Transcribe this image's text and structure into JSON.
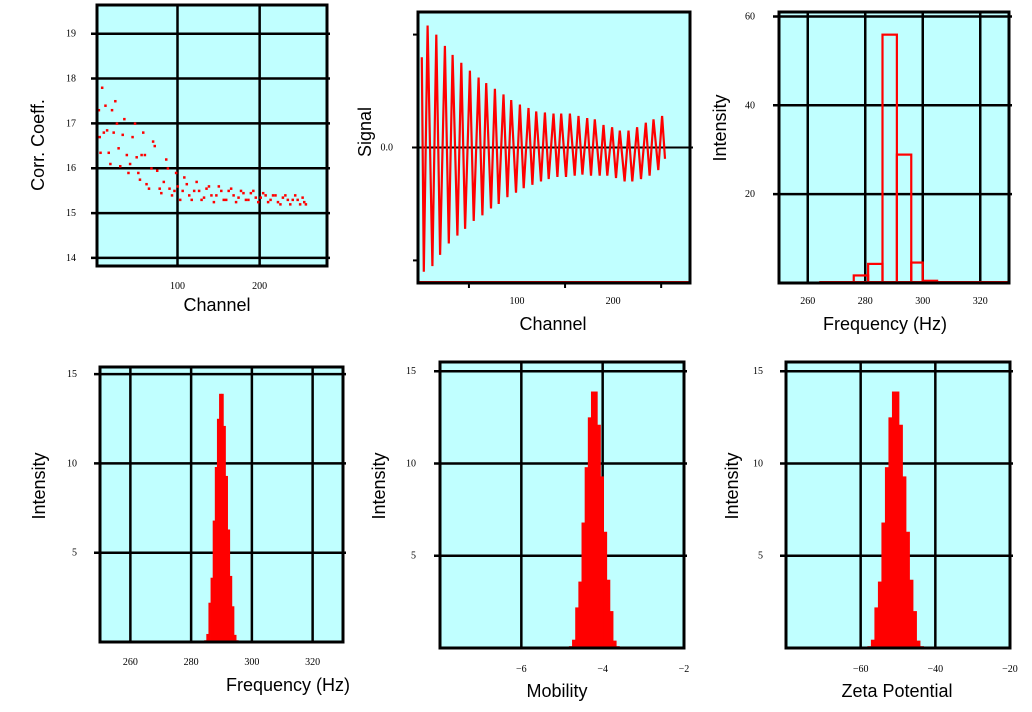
{
  "colors": {
    "plot_background": "#c0ffff",
    "data": "#ff0000",
    "grid": "#000000"
  },
  "chart_data": [
    {
      "type": "scatter",
      "xlabel": "Channel",
      "ylabel": "Corr. Coeff.",
      "xlim": [
        2,
        282
      ],
      "ylim": [
        13.82,
        19.64
      ],
      "xticks": [
        100,
        200
      ],
      "xtick_labels": [
        "100",
        "200"
      ],
      "yticks": [
        14,
        15,
        16,
        17,
        18,
        19
      ],
      "ytick_labels": [
        "14",
        "15",
        "16",
        "17",
        "18",
        "19"
      ],
      "grid": true,
      "points": [
        [
          2,
          16.3
        ],
        [
          4,
          17.3
        ],
        [
          5,
          16.7
        ],
        [
          6,
          16.35
        ],
        [
          8,
          17.8
        ],
        [
          10,
          16.8
        ],
        [
          12,
          17.4
        ],
        [
          14,
          16.85
        ],
        [
          16,
          16.35
        ],
        [
          18,
          16.1
        ],
        [
          20,
          17.3
        ],
        [
          22,
          16.8
        ],
        [
          24,
          17.5
        ],
        [
          26,
          17.0
        ],
        [
          28,
          16.45
        ],
        [
          30,
          16.05
        ],
        [
          33,
          16.75
        ],
        [
          35,
          17.1
        ],
        [
          38,
          16.3
        ],
        [
          40,
          15.9
        ],
        [
          42,
          16.1
        ],
        [
          45,
          16.7
        ],
        [
          48,
          17.0
        ],
        [
          50,
          16.25
        ],
        [
          52,
          15.9
        ],
        [
          54,
          15.75
        ],
        [
          56,
          16.3
        ],
        [
          58,
          16.8
        ],
        [
          60,
          16.3
        ],
        [
          62,
          15.65
        ],
        [
          65,
          15.55
        ],
        [
          68,
          16.0
        ],
        [
          70,
          16.6
        ],
        [
          72,
          16.5
        ],
        [
          75,
          15.95
        ],
        [
          78,
          15.55
        ],
        [
          80,
          15.45
        ],
        [
          83,
          15.7
        ],
        [
          86,
          16.2
        ],
        [
          88,
          16.0
        ],
        [
          90,
          15.55
        ],
        [
          93,
          15.4
        ],
        [
          96,
          15.5
        ],
        [
          98,
          15.9
        ],
        [
          100,
          15.6
        ],
        [
          103,
          15.3
        ],
        [
          106,
          15.5
        ],
        [
          108,
          15.8
        ],
        [
          111,
          15.65
        ],
        [
          114,
          15.4
        ],
        [
          117,
          15.3
        ],
        [
          120,
          15.5
        ],
        [
          123,
          15.7
        ],
        [
          126,
          15.5
        ],
        [
          129,
          15.3
        ],
        [
          132,
          15.35
        ],
        [
          135,
          15.55
        ],
        [
          138,
          15.6
        ],
        [
          141,
          15.4
        ],
        [
          144,
          15.25
        ],
        [
          147,
          15.4
        ],
        [
          150,
          15.6
        ],
        [
          153,
          15.5
        ],
        [
          156,
          15.3
        ],
        [
          159,
          15.3
        ],
        [
          162,
          15.5
        ],
        [
          165,
          15.55
        ],
        [
          168,
          15.4
        ],
        [
          171,
          15.25
        ],
        [
          174,
          15.35
        ],
        [
          177,
          15.5
        ],
        [
          180,
          15.45
        ],
        [
          183,
          15.3
        ],
        [
          186,
          15.3
        ],
        [
          189,
          15.45
        ],
        [
          192,
          15.5
        ],
        [
          195,
          15.35
        ],
        [
          198,
          15.25
        ],
        [
          201,
          15.35
        ],
        [
          204,
          15.45
        ],
        [
          207,
          15.4
        ],
        [
          210,
          15.25
        ],
        [
          213,
          15.3
        ],
        [
          216,
          15.4
        ],
        [
          219,
          15.4
        ],
        [
          222,
          15.25
        ],
        [
          225,
          15.2
        ],
        [
          228,
          15.35
        ],
        [
          231,
          15.4
        ],
        [
          234,
          15.3
        ],
        [
          237,
          15.2
        ],
        [
          240,
          15.3
        ],
        [
          243,
          15.4
        ],
        [
          246,
          15.3
        ],
        [
          249,
          15.2
        ],
        [
          252,
          15.35
        ],
        [
          254,
          15.25
        ],
        [
          256,
          15.2
        ]
      ]
    },
    {
      "type": "line",
      "xlabel": "Channel",
      "ylabel": "Signal",
      "xlim": [
        -3,
        280
      ],
      "ylim": [
        -1.2,
        1.2
      ],
      "xticks": [
        100,
        200
      ],
      "xtick_labels": [
        "100",
        "200"
      ],
      "yticks": [
        0
      ],
      "ytick_labels": [
        "0.0"
      ],
      "minor_yticks": [
        -1,
        1
      ],
      "minor_xticks": [
        50,
        150,
        250
      ],
      "grid": false,
      "zero_line": true,
      "points": [
        [
          1,
          0.8
        ],
        [
          3,
          -1.1
        ],
        [
          7,
          1.08
        ],
        [
          12,
          -1.05
        ],
        [
          16,
          1.0
        ],
        [
          20,
          -0.95
        ],
        [
          25,
          0.9
        ],
        [
          29,
          -0.85
        ],
        [
          33,
          0.82
        ],
        [
          38,
          -0.78
        ],
        [
          42,
          0.75
        ],
        [
          46,
          -0.72
        ],
        [
          51,
          0.68
        ],
        [
          55,
          -0.65
        ],
        [
          60,
          0.62
        ],
        [
          64,
          -0.6
        ],
        [
          68,
          0.57
        ],
        [
          73,
          -0.54
        ],
        [
          77,
          0.52
        ],
        [
          81,
          -0.5
        ],
        [
          86,
          0.47
        ],
        [
          90,
          -0.44
        ],
        [
          94,
          0.42
        ],
        [
          99,
          -0.4
        ],
        [
          103,
          0.38
        ],
        [
          107,
          -0.36
        ],
        [
          112,
          0.35
        ],
        [
          116,
          -0.33
        ],
        [
          120,
          0.32
        ],
        [
          125,
          -0.3
        ],
        [
          129,
          0.31
        ],
        [
          133,
          -0.28
        ],
        [
          138,
          0.3
        ],
        [
          142,
          -0.26
        ],
        [
          146,
          0.3
        ],
        [
          151,
          -0.26
        ],
        [
          155,
          0.3
        ],
        [
          160,
          -0.25
        ],
        [
          164,
          0.28
        ],
        [
          168,
          -0.24
        ],
        [
          173,
          0.26
        ],
        [
          177,
          -0.25
        ],
        [
          181,
          0.25
        ],
        [
          186,
          -0.25
        ],
        [
          190,
          0.2
        ],
        [
          194,
          -0.25
        ],
        [
          199,
          0.18
        ],
        [
          203,
          -0.27
        ],
        [
          207,
          0.15
        ],
        [
          212,
          -0.3
        ],
        [
          216,
          0.15
        ],
        [
          220,
          -0.3
        ],
        [
          225,
          0.18
        ],
        [
          229,
          -0.28
        ],
        [
          234,
          0.22
        ],
        [
          238,
          -0.25
        ],
        [
          242,
          0.25
        ],
        [
          247,
          -0.2
        ],
        [
          251,
          0.28
        ],
        [
          254,
          -0.1
        ]
      ]
    },
    {
      "type": "bar",
      "style": "outline",
      "xlabel": "Frequency (Hz)",
      "ylabel": "Intensity",
      "xlim": [
        250,
        330
      ],
      "ylim": [
        0,
        61
      ],
      "xticks": [
        260,
        280,
        300,
        320
      ],
      "xtick_labels": [
        "260",
        "280",
        "300",
        "320"
      ],
      "yticks": [
        20,
        40,
        60
      ],
      "ytick_labels": [
        "20",
        "40",
        "60"
      ],
      "grid": true,
      "bins": [
        [
          276,
          281,
          1.7
        ],
        [
          281,
          286,
          4.3
        ],
        [
          286,
          291,
          55.9
        ],
        [
          291,
          296,
          28.9
        ],
        [
          296,
          300,
          4.6
        ],
        [
          300,
          305,
          0.5
        ]
      ]
    },
    {
      "type": "bar",
      "style": "filled",
      "xlabel": "Frequency (Hz)",
      "ylabel": "Intensity",
      "xlim": [
        250,
        330
      ],
      "ylim": [
        0,
        15.4
      ],
      "xticks": [
        260,
        280,
        300,
        320
      ],
      "xtick_labels": [
        "260",
        "280",
        "300",
        "320"
      ],
      "yticks": [
        5,
        10,
        15
      ],
      "ytick_labels": [
        "5",
        "10",
        "15"
      ],
      "grid": true,
      "bin_start": 284.3,
      "bin_width": 0.7,
      "values": [
        0.1,
        0.45,
        2.2,
        3.6,
        6.8,
        9.8,
        12.5,
        13.9,
        13.9,
        12.1,
        9.3,
        6.3,
        3.7,
        2.0,
        0.4,
        0.1
      ]
    },
    {
      "type": "bar",
      "style": "filled",
      "xlabel": "Mobility",
      "ylabel": "Intensity",
      "xlim": [
        -8,
        -2
      ],
      "ylim": [
        0,
        15.5
      ],
      "xticks": [
        -6,
        -4,
        -2
      ],
      "xtick_labels": [
        "−6",
        "−4",
        "−2"
      ],
      "yticks": [
        5,
        10,
        15
      ],
      "ytick_labels": [
        "5",
        "10",
        "15"
      ],
      "grid": true,
      "bin_start": -4.83,
      "bin_width": 0.0775,
      "values": [
        0.1,
        0.45,
        2.2,
        3.6,
        6.8,
        9.8,
        12.5,
        13.9,
        13.9,
        12.1,
        9.3,
        6.3,
        3.7,
        2.0,
        0.4,
        0.1
      ]
    },
    {
      "type": "bar",
      "style": "filled",
      "xlabel": "Zeta Potential",
      "ylabel": "Intensity",
      "xlim": [
        -80,
        -20
      ],
      "ylim": [
        0,
        15.5
      ],
      "xticks": [
        -60,
        -40,
        -20
      ],
      "xtick_labels": [
        "−60",
        "−40",
        "−20"
      ],
      "yticks": [
        5,
        10,
        15
      ],
      "ytick_labels": [
        "5",
        "10",
        "15"
      ],
      "grid": true,
      "bin_start": -58.2,
      "bin_width": 0.94,
      "values": [
        0.1,
        0.45,
        2.2,
        3.6,
        6.8,
        9.8,
        12.5,
        13.9,
        13.9,
        12.1,
        9.3,
        6.3,
        3.7,
        2.0,
        0.4,
        0.1
      ]
    }
  ]
}
